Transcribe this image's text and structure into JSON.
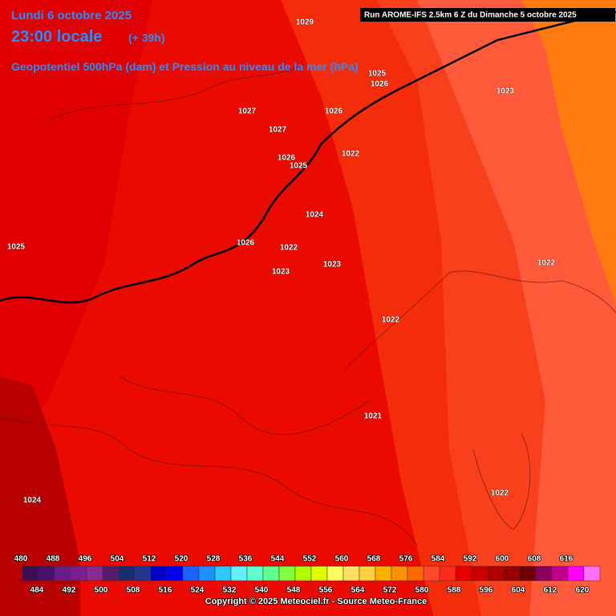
{
  "header": {
    "date": "Lundi 6 octobre 2025",
    "time": "23:00 locale",
    "lead": "(+ 39h)",
    "field": "Geopotentiel 500hPa (dam) et Pression au niveau de la mer (hPa)",
    "run": "Run AROME-IFS 2.5km 6 Z du Dimanche 5 octobre 2025"
  },
  "pressure_labels": [
    1029,
    1025,
    1026,
    1023,
    1027,
    1026,
    1027,
    1022,
    1026,
    1025,
    1024,
    1026,
    1025,
    1022,
    1023,
    1022,
    1023,
    1022,
    1021,
    1022,
    1024
  ],
  "colorbar": {
    "levels": [
      480,
      484,
      488,
      492,
      496,
      500,
      504,
      508,
      512,
      516,
      520,
      524,
      528,
      532,
      536,
      540,
      544,
      548,
      552,
      556,
      560,
      564,
      568,
      572,
      576,
      580,
      584,
      588,
      592,
      596,
      600,
      604,
      608,
      612,
      616,
      620
    ],
    "colors": [
      "#3c1050",
      "#4b0f6e",
      "#6a1b8a",
      "#7b1e8e",
      "#8a2a8e",
      "#5a1a6a",
      "#1a2a6a",
      "#23358c",
      "#0000c8",
      "#0000f0",
      "#2060ff",
      "#2090ff",
      "#30c8ff",
      "#60f0ff",
      "#60ffd0",
      "#60ff90",
      "#80ff40",
      "#b0ff00",
      "#e0ff00",
      "#ffff60",
      "#ffe060",
      "#ffd040",
      "#ffb000",
      "#ff9000",
      "#ff6a00",
      "#ff4a2a",
      "#ff2a1a",
      "#e60000",
      "#c80000",
      "#b00000",
      "#960000",
      "#700000",
      "#8a005a",
      "#c0008a",
      "#ff00ff",
      "#ff70ff"
    ]
  },
  "footer": "Copyright © 2025 Meteociel.fr - Source Meteo-France"
}
